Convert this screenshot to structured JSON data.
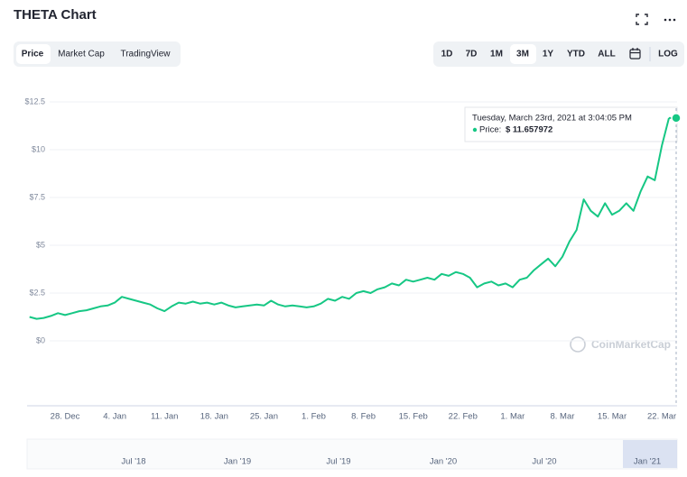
{
  "header": {
    "title": "THETA Chart"
  },
  "tabs": [
    "Price",
    "Market Cap",
    "TradingView"
  ],
  "ranges": [
    "1D",
    "7D",
    "1M",
    "3M",
    "1Y",
    "YTD",
    "ALL",
    "LOG"
  ],
  "tooltip": {
    "date": "Tuesday, March 23rd, 2021 at 3:04:05 PM",
    "label": "Price:",
    "value": "$ 11.657972"
  },
  "watermark": "CoinMarketCap",
  "navigator_labels": [
    "Jul '18",
    "Jan '19",
    "Jul '19",
    "Jan '20",
    "Jul '20",
    "Jan '21"
  ],
  "chart_data": {
    "type": "line",
    "color": "#16c784",
    "grid": true,
    "categories": [
      null,
      null,
      null,
      null,
      null,
      "28. Dec",
      null,
      null,
      null,
      null,
      null,
      null,
      "4. Jan",
      null,
      null,
      null,
      null,
      null,
      null,
      "11. Jan",
      null,
      null,
      null,
      null,
      null,
      null,
      "18. Jan",
      null,
      null,
      null,
      null,
      null,
      null,
      "25. Jan",
      null,
      null,
      null,
      null,
      null,
      null,
      "1. Feb",
      null,
      null,
      null,
      null,
      null,
      null,
      "8. Feb",
      null,
      null,
      null,
      null,
      null,
      null,
      "15. Feb",
      null,
      null,
      null,
      null,
      null,
      null,
      "22. Feb",
      null,
      null,
      null,
      null,
      null,
      null,
      "1. Mar",
      null,
      null,
      null,
      null,
      null,
      null,
      "8. Mar",
      null,
      null,
      null,
      null,
      null,
      null,
      "15. Mar",
      null,
      null,
      null,
      null,
      null,
      null,
      "22. Mar",
      null
    ],
    "values": [
      1.25,
      1.15,
      1.2,
      1.3,
      1.45,
      1.35,
      1.45,
      1.55,
      1.6,
      1.7,
      1.8,
      1.85,
      2.0,
      2.3,
      2.2,
      2.1,
      2.0,
      1.9,
      1.7,
      1.55,
      1.8,
      2.0,
      1.95,
      2.05,
      1.95,
      2.0,
      1.9,
      2.0,
      1.85,
      1.75,
      1.8,
      1.85,
      1.9,
      1.85,
      2.1,
      1.9,
      1.8,
      1.85,
      1.8,
      1.75,
      1.8,
      1.95,
      2.2,
      2.1,
      2.3,
      2.2,
      2.5,
      2.6,
      2.5,
      2.7,
      2.8,
      3.0,
      2.9,
      3.2,
      3.1,
      3.2,
      3.3,
      3.2,
      3.5,
      3.4,
      3.6,
      3.5,
      3.3,
      2.8,
      3.0,
      3.1,
      2.9,
      3.0,
      2.8,
      3.2,
      3.3,
      3.7,
      4.0,
      4.3,
      3.9,
      4.4,
      5.2,
      5.8,
      7.4,
      6.8,
      6.5,
      7.2,
      6.6,
      6.8,
      7.2,
      6.8,
      7.8,
      8.6,
      8.4,
      10.2,
      11.657972
    ],
    "ylim": [
      0,
      12.5
    ],
    "yticks": [
      {
        "value": 0,
        "label": "$0"
      },
      {
        "value": 2.5,
        "label": "$2.5"
      },
      {
        "value": 5,
        "label": "$5"
      },
      {
        "value": 7.5,
        "label": "$7.5"
      },
      {
        "value": 10,
        "label": "$10"
      },
      {
        "value": 12.5,
        "label": "$12.5"
      }
    ]
  }
}
